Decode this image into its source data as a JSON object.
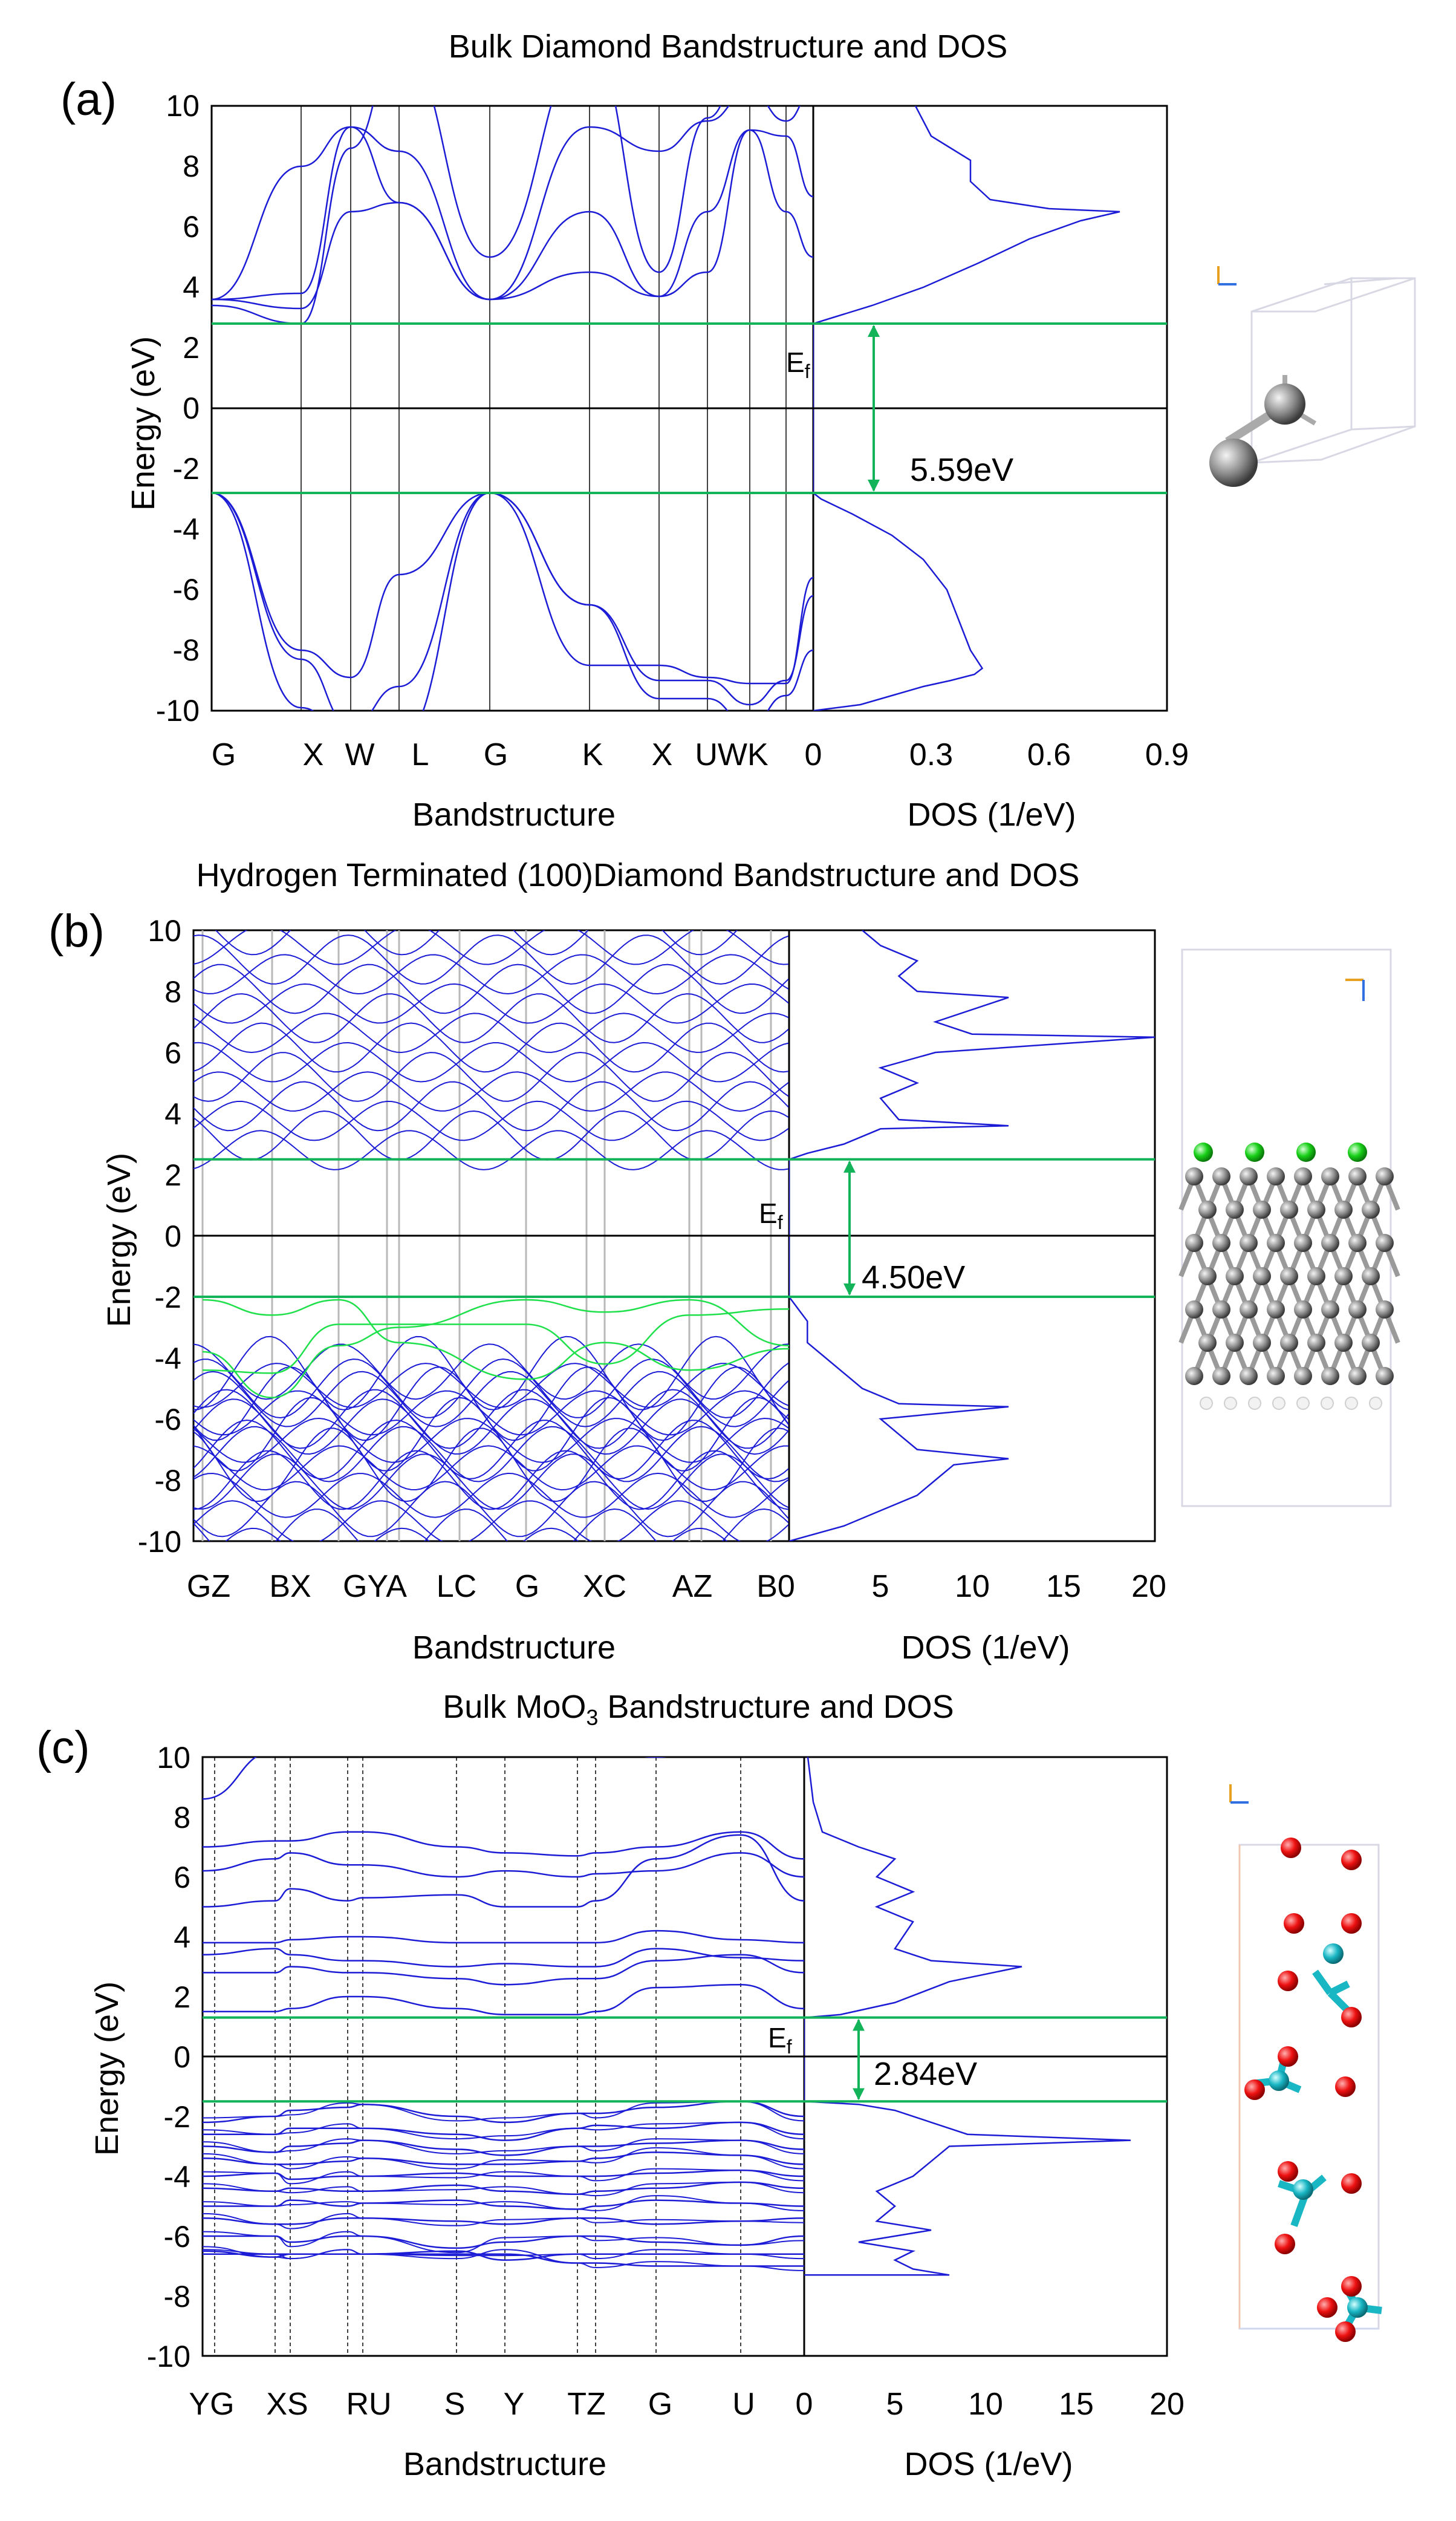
{
  "colors": {
    "band": "#1c1cd6",
    "gap": "#13b35a",
    "hband": "#1ee04a",
    "axis": "#000000",
    "kline": "#000000",
    "kline_b": "#b8b8b8"
  },
  "chart_data": [
    {
      "type": "line",
      "panel_label": "(a)",
      "title": "Bulk Diamond Bandstructure and DOS",
      "band_xlabel": "Bandstructure",
      "dos_xlabel": "DOS (1/eV)",
      "ylabel": "Energy (eV)",
      "ylim": [
        -10,
        10
      ],
      "yticks": [
        "10",
        "8",
        "6",
        "4",
        "2",
        "0",
        "-2",
        "-4",
        "-6",
        "-8",
        "-10"
      ],
      "kpath_labels": [
        "G",
        "X",
        "W",
        "L",
        "G",
        "K",
        "X",
        "U",
        "W",
        "K"
      ],
      "kpath_tick_text": [
        "G",
        "X",
        "W",
        "L",
        "G",
        "K",
        "X",
        "UWK"
      ],
      "dos_xlim": [
        0,
        0.9
      ],
      "dos_xticks": [
        "0",
        "0.3",
        "0.6",
        "0.9"
      ],
      "vbm_eV": -2.8,
      "cbm_eV": 2.8,
      "fermi_label": "Ef",
      "gap_label": "5.59eV",
      "dos_curve": [
        [
          0,
          -10
        ],
        [
          0.12,
          -9.8
        ],
        [
          0.2,
          -9.5
        ],
        [
          0.28,
          -9.2
        ],
        [
          0.35,
          -9.0
        ],
        [
          0.41,
          -8.8
        ],
        [
          0.43,
          -8.6
        ],
        [
          0.4,
          -8
        ],
        [
          0.37,
          -7
        ],
        [
          0.34,
          -6
        ],
        [
          0.28,
          -5
        ],
        [
          0.2,
          -4.2
        ],
        [
          0.1,
          -3.5
        ],
        [
          0.02,
          -3
        ],
        [
          0,
          -2.8
        ],
        [
          0,
          2.8
        ],
        [
          0.05,
          3.0
        ],
        [
          0.15,
          3.4
        ],
        [
          0.28,
          4
        ],
        [
          0.42,
          4.8
        ],
        [
          0.55,
          5.6
        ],
        [
          0.68,
          6.2
        ],
        [
          0.78,
          6.5
        ],
        [
          0.6,
          6.6
        ],
        [
          0.45,
          6.9
        ],
        [
          0.4,
          7.5
        ],
        [
          0.4,
          8.2
        ],
        [
          0.35,
          8.6
        ],
        [
          0.3,
          9.0
        ],
        [
          0.28,
          9.5
        ],
        [
          0.26,
          10
        ]
      ]
    },
    {
      "type": "line",
      "panel_label": "(b)",
      "title": "Hydrogen Terminated (100)Diamond Bandstructure and DOS",
      "band_xlabel": "Bandstructure",
      "dos_xlabel": "DOS (1/eV)",
      "ylabel": "Energy (eV)",
      "ylim": [
        -10,
        10
      ],
      "yticks": [
        "10",
        "8",
        "6",
        "4",
        "2",
        "0",
        "-2",
        "-4",
        "-6",
        "-8",
        "-10"
      ],
      "kpath_tick_text": [
        "GZ",
        "BX",
        "GYA",
        "LC",
        "G",
        "XC",
        "AZ",
        "B0"
      ],
      "dos_xlim": [
        0,
        20
      ],
      "dos_xticks": [
        "5",
        "10",
        "15",
        "20"
      ],
      "vbm_eV": -2.0,
      "cbm_eV": 2.5,
      "fermi_label": "Ef",
      "gap_label": "4.50eV",
      "dos_curve": [
        [
          0,
          -10
        ],
        [
          3,
          -9.5
        ],
        [
          5,
          -9
        ],
        [
          7,
          -8.5
        ],
        [
          8,
          -8
        ],
        [
          9,
          -7.5
        ],
        [
          12,
          -7.3
        ],
        [
          7,
          -7
        ],
        [
          6,
          -6.5
        ],
        [
          5,
          -6
        ],
        [
          12,
          -5.6
        ],
        [
          6,
          -5.5
        ],
        [
          4,
          -5
        ],
        [
          3,
          -4.5
        ],
        [
          2,
          -4
        ],
        [
          1,
          -3.5
        ],
        [
          1,
          -2.8
        ],
        [
          0.5,
          -2.4
        ],
        [
          0,
          -2.0
        ],
        [
          0,
          2.5
        ],
        [
          1,
          2.7
        ],
        [
          3,
          3.0
        ],
        [
          5,
          3.5
        ],
        [
          12,
          3.6
        ],
        [
          6,
          3.8
        ],
        [
          5,
          4.5
        ],
        [
          7,
          5
        ],
        [
          5,
          5.5
        ],
        [
          8,
          6.0
        ],
        [
          20,
          6.5
        ],
        [
          10,
          6.6
        ],
        [
          8,
          7
        ],
        [
          12,
          7.8
        ],
        [
          7,
          8
        ],
        [
          6,
          8.5
        ],
        [
          7,
          9
        ],
        [
          5,
          9.5
        ],
        [
          4,
          10
        ]
      ]
    },
    {
      "type": "line",
      "panel_label": "(c)",
      "title": "Bulk MoO3 Bandstructure and DOS",
      "band_xlabel": "Bandstructure",
      "dos_xlabel": "DOS (1/eV)",
      "ylabel": "Energy (eV)",
      "ylim": [
        -10,
        10
      ],
      "yticks": [
        "10",
        "8",
        "6",
        "4",
        "2",
        "0",
        "-2",
        "-4",
        "-6",
        "-8",
        "-10"
      ],
      "kpath_tick_text": [
        "YG",
        "XS",
        "RU",
        "S",
        "Y",
        "TZ",
        "G",
        "U",
        "0"
      ],
      "dos_xlim": [
        0,
        20
      ],
      "dos_xticks": [
        "5",
        "10",
        "15",
        "20"
      ],
      "vbm_eV": -1.5,
      "cbm_eV": 1.3,
      "fermi_label": "Ef",
      "gap_label": "2.84eV",
      "dos_curve": [
        [
          0,
          -7.3
        ],
        [
          8,
          -7.3
        ],
        [
          6,
          -7.1
        ],
        [
          5,
          -6.8
        ],
        [
          6,
          -6.5
        ],
        [
          3,
          -6.2
        ],
        [
          7,
          -5.8
        ],
        [
          4,
          -5.5
        ],
        [
          5,
          -5
        ],
        [
          4,
          -4.5
        ],
        [
          6,
          -4
        ],
        [
          7,
          -3.5
        ],
        [
          8,
          -3
        ],
        [
          18,
          -2.8
        ],
        [
          9,
          -2.6
        ],
        [
          7,
          -2.2
        ],
        [
          5,
          -1.8
        ],
        [
          3,
          -1.6
        ],
        [
          0,
          -1.5
        ],
        [
          0,
          1.3
        ],
        [
          2,
          1.4
        ],
        [
          5,
          1.8
        ],
        [
          8,
          2.5
        ],
        [
          12,
          3.0
        ],
        [
          7,
          3.2
        ],
        [
          5,
          3.6
        ],
        [
          6,
          4.5
        ],
        [
          4,
          5
        ],
        [
          6,
          5.5
        ],
        [
          4,
          6
        ],
        [
          5,
          6.6
        ],
        [
          3,
          7
        ],
        [
          1,
          7.5
        ],
        [
          0.5,
          8.5
        ],
        [
          0.3,
          9.5
        ],
        [
          0.2,
          10
        ]
      ]
    }
  ]
}
